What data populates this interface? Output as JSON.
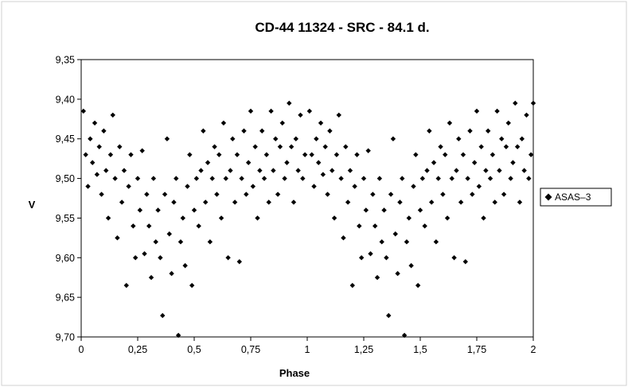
{
  "chart_data": {
    "type": "scatter",
    "title": "CD-44 11324 - SRC - 84.1 d.",
    "xlabel": "Phase",
    "ylabel": "V",
    "xlim": [
      0,
      2
    ],
    "ylim": [
      9.35,
      9.7
    ],
    "y_inverted": true,
    "x_ticks": [
      "0",
      "0,25",
      "0,5",
      "0,75",
      "1",
      "1,25",
      "1,5",
      "1,75",
      "2"
    ],
    "y_ticks": [
      "9,35",
      "9,40",
      "9,45",
      "9,50",
      "9,55",
      "9,60",
      "9,65",
      "9,70"
    ],
    "legend_position": "right",
    "marker": "diamond",
    "marker_color": "#000000",
    "grid": false,
    "series": [
      {
        "name": "ASAS–3",
        "points": [
          [
            0.01,
            9.415
          ],
          [
            0.02,
            9.47
          ],
          [
            0.03,
            9.51
          ],
          [
            0.04,
            9.45
          ],
          [
            0.05,
            9.48
          ],
          [
            0.06,
            9.43
          ],
          [
            0.07,
            9.495
          ],
          [
            0.08,
            9.46
          ],
          [
            0.09,
            9.52
          ],
          [
            0.1,
            9.44
          ],
          [
            0.11,
            9.49
          ],
          [
            0.12,
            9.55
          ],
          [
            0.13,
            9.47
          ],
          [
            0.14,
            9.42
          ],
          [
            0.15,
            9.5
          ],
          [
            0.16,
            9.575
          ],
          [
            0.17,
            9.46
          ],
          [
            0.18,
            9.53
          ],
          [
            0.19,
            9.49
          ],
          [
            0.2,
            9.635
          ],
          [
            0.21,
            9.51
          ],
          [
            0.22,
            9.47
          ],
          [
            0.23,
            9.56
          ],
          [
            0.24,
            9.6
          ],
          [
            0.25,
            9.5
          ],
          [
            0.26,
            9.54
          ],
          [
            0.27,
            9.465
          ],
          [
            0.28,
            9.595
          ],
          [
            0.29,
            9.52
          ],
          [
            0.3,
            9.56
          ],
          [
            0.31,
            9.625
          ],
          [
            0.32,
            9.5
          ],
          [
            0.33,
            9.58
          ],
          [
            0.34,
            9.54
          ],
          [
            0.35,
            9.6
          ],
          [
            0.36,
            9.673
          ],
          [
            0.37,
            9.52
          ],
          [
            0.38,
            9.45
          ],
          [
            0.39,
            9.57
          ],
          [
            0.4,
            9.62
          ],
          [
            0.41,
            9.53
          ],
          [
            0.42,
            9.5
          ],
          [
            0.43,
            9.698
          ],
          [
            0.44,
            9.58
          ],
          [
            0.45,
            9.55
          ],
          [
            0.46,
            9.61
          ],
          [
            0.47,
            9.51
          ],
          [
            0.48,
            9.47
          ],
          [
            0.49,
            9.635
          ],
          [
            0.5,
            9.54
          ],
          [
            0.51,
            9.5
          ],
          [
            0.52,
            9.56
          ],
          [
            0.53,
            9.49
          ],
          [
            0.54,
            9.44
          ],
          [
            0.55,
            9.53
          ],
          [
            0.56,
            9.48
          ],
          [
            0.57,
            9.58
          ],
          [
            0.58,
            9.5
          ],
          [
            0.59,
            9.46
          ],
          [
            0.6,
            9.52
          ],
          [
            0.61,
            9.47
          ],
          [
            0.62,
            9.55
          ],
          [
            0.63,
            9.43
          ],
          [
            0.64,
            9.5
          ],
          [
            0.65,
            9.6
          ],
          [
            0.66,
            9.49
          ],
          [
            0.67,
            9.45
          ],
          [
            0.68,
            9.53
          ],
          [
            0.69,
            9.47
          ],
          [
            0.7,
            9.605
          ],
          [
            0.71,
            9.5
          ],
          [
            0.72,
            9.44
          ],
          [
            0.73,
            9.52
          ],
          [
            0.74,
            9.48
          ],
          [
            0.75,
            9.415
          ],
          [
            0.76,
            9.51
          ],
          [
            0.77,
            9.46
          ],
          [
            0.78,
            9.55
          ],
          [
            0.79,
            9.49
          ],
          [
            0.8,
            9.44
          ],
          [
            0.81,
            9.5
          ],
          [
            0.82,
            9.47
          ],
          [
            0.83,
            9.53
          ],
          [
            0.84,
            9.415
          ],
          [
            0.85,
            9.49
          ],
          [
            0.86,
            9.45
          ],
          [
            0.87,
            9.52
          ],
          [
            0.88,
            9.46
          ],
          [
            0.89,
            9.43
          ],
          [
            0.9,
            9.5
          ],
          [
            0.91,
            9.48
          ],
          [
            0.92,
            9.405
          ],
          [
            0.93,
            9.46
          ],
          [
            0.94,
            9.53
          ],
          [
            0.95,
            9.45
          ],
          [
            0.96,
            9.49
          ],
          [
            0.97,
            9.42
          ],
          [
            0.98,
            9.5
          ],
          [
            0.99,
            9.47
          ],
          [
            1.01,
            9.415
          ],
          [
            1.02,
            9.47
          ],
          [
            1.03,
            9.51
          ],
          [
            1.04,
            9.45
          ],
          [
            1.05,
            9.48
          ],
          [
            1.06,
            9.43
          ],
          [
            1.07,
            9.495
          ],
          [
            1.08,
            9.46
          ],
          [
            1.09,
            9.52
          ],
          [
            1.1,
            9.44
          ],
          [
            1.11,
            9.49
          ],
          [
            1.12,
            9.55
          ],
          [
            1.13,
            9.47
          ],
          [
            1.14,
            9.42
          ],
          [
            1.15,
            9.5
          ],
          [
            1.16,
            9.575
          ],
          [
            1.17,
            9.46
          ],
          [
            1.18,
            9.53
          ],
          [
            1.19,
            9.49
          ],
          [
            1.2,
            9.635
          ],
          [
            1.21,
            9.51
          ],
          [
            1.22,
            9.47
          ],
          [
            1.23,
            9.56
          ],
          [
            1.24,
            9.6
          ],
          [
            1.25,
            9.5
          ],
          [
            1.26,
            9.54
          ],
          [
            1.27,
            9.465
          ],
          [
            1.28,
            9.595
          ],
          [
            1.29,
            9.52
          ],
          [
            1.3,
            9.56
          ],
          [
            1.31,
            9.625
          ],
          [
            1.32,
            9.5
          ],
          [
            1.33,
            9.58
          ],
          [
            1.34,
            9.54
          ],
          [
            1.35,
            9.6
          ],
          [
            1.36,
            9.673
          ],
          [
            1.37,
            9.52
          ],
          [
            1.38,
            9.45
          ],
          [
            1.39,
            9.57
          ],
          [
            1.4,
            9.62
          ],
          [
            1.41,
            9.53
          ],
          [
            1.42,
            9.5
          ],
          [
            1.43,
            9.698
          ],
          [
            1.44,
            9.58
          ],
          [
            1.45,
            9.55
          ],
          [
            1.46,
            9.61
          ],
          [
            1.47,
            9.51
          ],
          [
            1.48,
            9.47
          ],
          [
            1.49,
            9.635
          ],
          [
            1.5,
            9.54
          ],
          [
            1.51,
            9.5
          ],
          [
            1.52,
            9.56
          ],
          [
            1.53,
            9.49
          ],
          [
            1.54,
            9.44
          ],
          [
            1.55,
            9.53
          ],
          [
            1.56,
            9.48
          ],
          [
            1.57,
            9.58
          ],
          [
            1.58,
            9.5
          ],
          [
            1.59,
            9.46
          ],
          [
            1.6,
            9.52
          ],
          [
            1.61,
            9.47
          ],
          [
            1.62,
            9.55
          ],
          [
            1.63,
            9.43
          ],
          [
            1.64,
            9.5
          ],
          [
            1.65,
            9.6
          ],
          [
            1.66,
            9.49
          ],
          [
            1.67,
            9.45
          ],
          [
            1.68,
            9.53
          ],
          [
            1.69,
            9.47
          ],
          [
            1.7,
            9.605
          ],
          [
            1.71,
            9.5
          ],
          [
            1.72,
            9.44
          ],
          [
            1.73,
            9.52
          ],
          [
            1.74,
            9.48
          ],
          [
            1.75,
            9.415
          ],
          [
            1.76,
            9.51
          ],
          [
            1.77,
            9.46
          ],
          [
            1.78,
            9.55
          ],
          [
            1.79,
            9.49
          ],
          [
            1.8,
            9.44
          ],
          [
            1.81,
            9.5
          ],
          [
            1.82,
            9.47
          ],
          [
            1.83,
            9.53
          ],
          [
            1.84,
            9.415
          ],
          [
            1.85,
            9.49
          ],
          [
            1.86,
            9.45
          ],
          [
            1.87,
            9.52
          ],
          [
            1.88,
            9.46
          ],
          [
            1.89,
            9.43
          ],
          [
            1.9,
            9.5
          ],
          [
            1.91,
            9.48
          ],
          [
            1.92,
            9.405
          ],
          [
            1.93,
            9.46
          ],
          [
            1.94,
            9.53
          ],
          [
            1.95,
            9.45
          ],
          [
            1.96,
            9.49
          ],
          [
            1.97,
            9.42
          ],
          [
            1.98,
            9.5
          ],
          [
            1.99,
            9.47
          ],
          [
            2.0,
            9.405
          ]
        ]
      }
    ]
  }
}
